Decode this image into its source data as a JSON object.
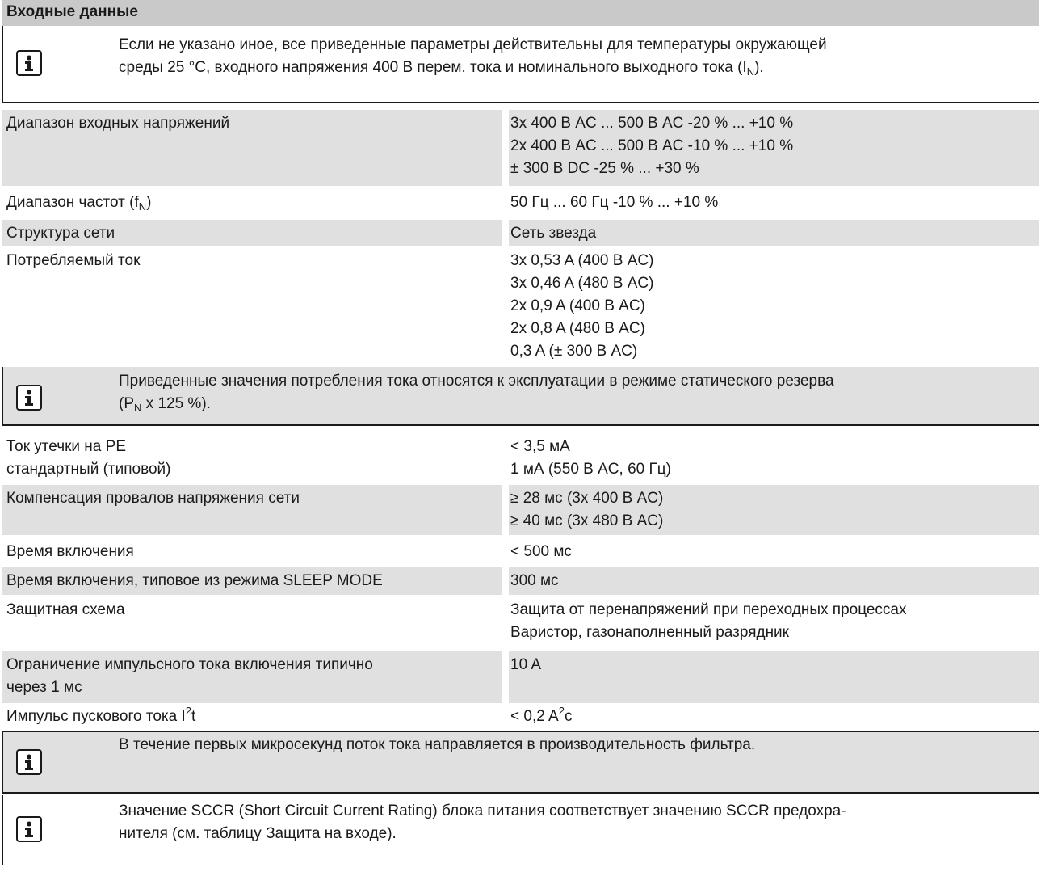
{
  "section": {
    "title": "Входные данные"
  },
  "notes": {
    "ambient": {
      "icon": "info-icon",
      "text_before": "Если не указано иное, все приведенные параметры действительны для температуры окружающей\nсреды 25 °C, входного напряжения 400 В перем. тока и номинального выходного тока (I",
      "text_sub": "N",
      "text_after": ")."
    },
    "consumption": {
      "icon": "info-icon",
      "text_before": "Приведенные значения потребления тока относятся к эксплуатации в режиме статического резерва\n(P",
      "text_sub": "N",
      "text_after": " x 125 %)."
    },
    "filter": {
      "icon": "info-icon",
      "text": "В течение первых микросекунд поток тока направляется в производительность фильтра."
    },
    "sccr": {
      "icon": "info-icon",
      "text": "Значение SCCR (Short Circuit Current Rating) блока питания соответствует значению SCCR предохра-\nнителя (см. таблицу Защита на входе)."
    }
  },
  "rows": {
    "input_voltage": {
      "label": "Диапазон входных напряжений",
      "value": "3x 400 В AC ... 500 В AC -20 % ... +10 %\n2x 400 В AC ... 500 В AC -10 % ... +10 %\n± 300 В DC -25 % ... +30 %"
    },
    "frequency": {
      "label_before": "Диапазон частот (f",
      "label_sub": "N",
      "label_after": ")",
      "value": "50 Гц ... 60 Гц -10 % ... +10 %"
    },
    "network": {
      "label": "Структура сети",
      "value": "Сеть звезда"
    },
    "current": {
      "label": "Потребляемый ток",
      "value": "3x 0,53 A (400 В AC)\n3x 0,46 A (480 В AC)\n2x 0,9 A (400 В AC)\n2x 0,8 A (480 В AC)\n0,3 A (± 300 В AC)"
    },
    "leakage": {
      "label": "Ток утечки на PE\nстандартный (типовой)",
      "value": "< 3,5 мА\n1 мА (550 В AC, 60 Гц)"
    },
    "dips": {
      "label": "Компенсация провалов напряжения сети",
      "value": "≥ 28 мс (3x 400 В AC)\n≥ 40 мс (3x 480 В AC)"
    },
    "switch_on": {
      "label": "Время включения",
      "value": "< 500 мс"
    },
    "sleep": {
      "label": "Время включения, типовое из режима SLEEP MODE",
      "value": "300 мс"
    },
    "protection": {
      "label": "Защитная схема",
      "value": "Защита от перенапряжений при переходных процессах\nВаристор, газонаполненный разрядник"
    },
    "inrush_limit": {
      "label": "Ограничение импульсного тока включения типично\nчерез 1 мс",
      "value": "10 A"
    },
    "i2t": {
      "label_before": "Импульс пускового тока I",
      "label_sup": "2",
      "label_after": "t",
      "value_before": "< 0,2 A",
      "value_sup": "2",
      "value_after": "c"
    }
  }
}
